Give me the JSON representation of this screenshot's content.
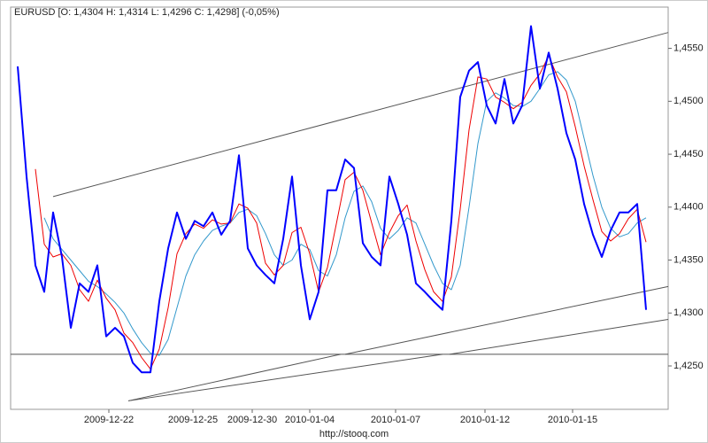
{
  "chart_data": {
    "type": "line",
    "title": "EURUSD [O: 1,4304  H: 1,4314  L: 1,4296  C: 1,4298] (-0,05%)",
    "footer": "http://stooq.com",
    "x": [
      0,
      1,
      2,
      3,
      4,
      5,
      6,
      7,
      8,
      9,
      10,
      11,
      12,
      13,
      14,
      15,
      16,
      17,
      18,
      19,
      20,
      21,
      22,
      23,
      24,
      25,
      26,
      27,
      28,
      29,
      30,
      31,
      32,
      33,
      34,
      35,
      36,
      37,
      38,
      39,
      40,
      41,
      42,
      43,
      44,
      45,
      46,
      47,
      48,
      49,
      50,
      51,
      52,
      53,
      54,
      55,
      56,
      57,
      58,
      59,
      60,
      61,
      62,
      63,
      64,
      65,
      66,
      67,
      68,
      69,
      70,
      71
    ],
    "xlim": [
      -0.8,
      73.5
    ],
    "xticks": [
      {
        "value": 10.3,
        "label": "2009-12-22"
      },
      {
        "value": 19.8,
        "label": "2009-12-25"
      },
      {
        "value": 26.5,
        "label": "2009-12-30"
      },
      {
        "value": 33.0,
        "label": "2010-01-04"
      },
      {
        "value": 42.7,
        "label": "2010-01-07"
      },
      {
        "value": 52.8,
        "label": "2010-01-12"
      },
      {
        "value": 62.7,
        "label": "2010-01-15"
      }
    ],
    "ylim": [
      1.4209,
      1.4589
    ],
    "yticks": [
      {
        "value": 1.425,
        "label": "1,4250"
      },
      {
        "value": 1.43,
        "label": "1,4300"
      },
      {
        "value": 1.435,
        "label": "1,4350"
      },
      {
        "value": 1.44,
        "label": "1,4400"
      },
      {
        "value": 1.445,
        "label": "1,4450"
      },
      {
        "value": 1.45,
        "label": "1,4500"
      },
      {
        "value": 1.455,
        "label": "1,4550"
      }
    ],
    "series": [
      {
        "color": "#3399cc",
        "values": [
          null,
          null,
          null,
          1.439,
          1.437,
          1.436,
          1.435,
          1.434,
          1.433,
          1.4325,
          1.4318,
          1.431,
          1.43,
          1.4285,
          1.4272,
          1.4262,
          1.426,
          1.4275,
          1.4305,
          1.4335,
          1.4355,
          1.4368,
          1.4378,
          1.4382,
          1.4385,
          1.4395,
          1.4398,
          1.4392,
          1.4375,
          1.4355,
          1.4345,
          1.435,
          1.4365,
          1.436,
          1.434,
          1.4335,
          1.4355,
          1.439,
          1.4415,
          1.442,
          1.4405,
          1.438,
          1.437,
          1.4378,
          1.439,
          1.4385,
          1.4365,
          1.4345,
          1.4328,
          1.4322,
          1.4345,
          1.44,
          1.446,
          1.45,
          1.4508,
          1.4503,
          1.4496,
          1.4495,
          1.45,
          1.4512,
          1.4525,
          1.4528,
          1.452,
          1.45,
          1.4465,
          1.443,
          1.44,
          1.438,
          1.4372,
          1.4375,
          1.4385,
          1.439
        ]
      },
      {
        "color": "#ee0000",
        "values": [
          null,
          null,
          1.4436,
          1.4365,
          1.4353,
          1.4356,
          1.4345,
          1.4322,
          1.4311,
          1.4331,
          1.4314,
          1.4303,
          1.4281,
          1.4272,
          1.4258,
          1.4247,
          1.4266,
          1.4305,
          1.4356,
          1.4375,
          1.4384,
          1.438,
          1.4388,
          1.4384,
          1.4385,
          1.4403,
          1.4399,
          1.4385,
          1.4347,
          1.4336,
          1.4345,
          1.4376,
          1.4381,
          1.4356,
          1.432,
          1.4343,
          1.4384,
          1.4426,
          1.4433,
          1.4416,
          1.4385,
          1.4355,
          1.4376,
          1.4392,
          1.4402,
          1.4368,
          1.4341,
          1.432,
          1.4311,
          1.4334,
          1.4398,
          1.4473,
          1.4523,
          1.4521,
          1.4504,
          1.4499,
          1.4493,
          1.4499,
          1.4515,
          1.4526,
          1.4543,
          1.4523,
          1.4509,
          1.4476,
          1.4439,
          1.4407,
          1.4377,
          1.4368,
          1.4375,
          1.4389,
          1.4398,
          1.4367
        ]
      },
      {
        "color": "#0000ff",
        "values": [
          1.4533,
          1.4429,
          1.4345,
          1.432,
          1.4395,
          1.4353,
          1.4286,
          1.4328,
          1.432,
          1.4345,
          1.4278,
          1.4286,
          1.4278,
          1.4253,
          1.4244,
          1.4244,
          1.4311,
          1.4361,
          1.4395,
          1.437,
          1.4387,
          1.4382,
          1.4395,
          1.4374,
          1.4387,
          1.4449,
          1.4361,
          1.4345,
          1.4336,
          1.4328,
          1.437,
          1.4429,
          1.4345,
          1.4294,
          1.432,
          1.4416,
          1.4416,
          1.4445,
          1.4437,
          1.4366,
          1.4353,
          1.4345,
          1.4429,
          1.4403,
          1.4374,
          1.4328,
          1.432,
          1.4311,
          1.4303,
          1.4387,
          1.4504,
          1.4529,
          1.4537,
          1.4496,
          1.4479,
          1.4521,
          1.4479,
          1.4496,
          1.4571,
          1.4512,
          1.4546,
          1.4512,
          1.447,
          1.4445,
          1.4403,
          1.4374,
          1.4353,
          1.4378,
          1.4395,
          1.4395,
          1.4403,
          1.4303
        ]
      }
    ],
    "trendlines": [
      {
        "x": [
          4.0,
          73.5
        ],
        "values": [
          1.441,
          1.4565
        ]
      },
      {
        "x": [
          12.5,
          36.5
        ],
        "values": [
          1.4217,
          1.4261
        ]
      },
      {
        "x": [
          12.5,
          48.0
        ],
        "values": [
          1.4217,
          1.4261
        ]
      },
      {
        "x": [
          37.0,
          73.5
        ],
        "values": [
          1.4261,
          1.4325
        ]
      },
      {
        "x": [
          48.8,
          73.5
        ],
        "values": [
          1.4261,
          1.4294
        ]
      },
      {
        "x": [
          -0.8,
          73.5
        ],
        "values": [
          1.4261,
          1.4261
        ]
      }
    ]
  }
}
